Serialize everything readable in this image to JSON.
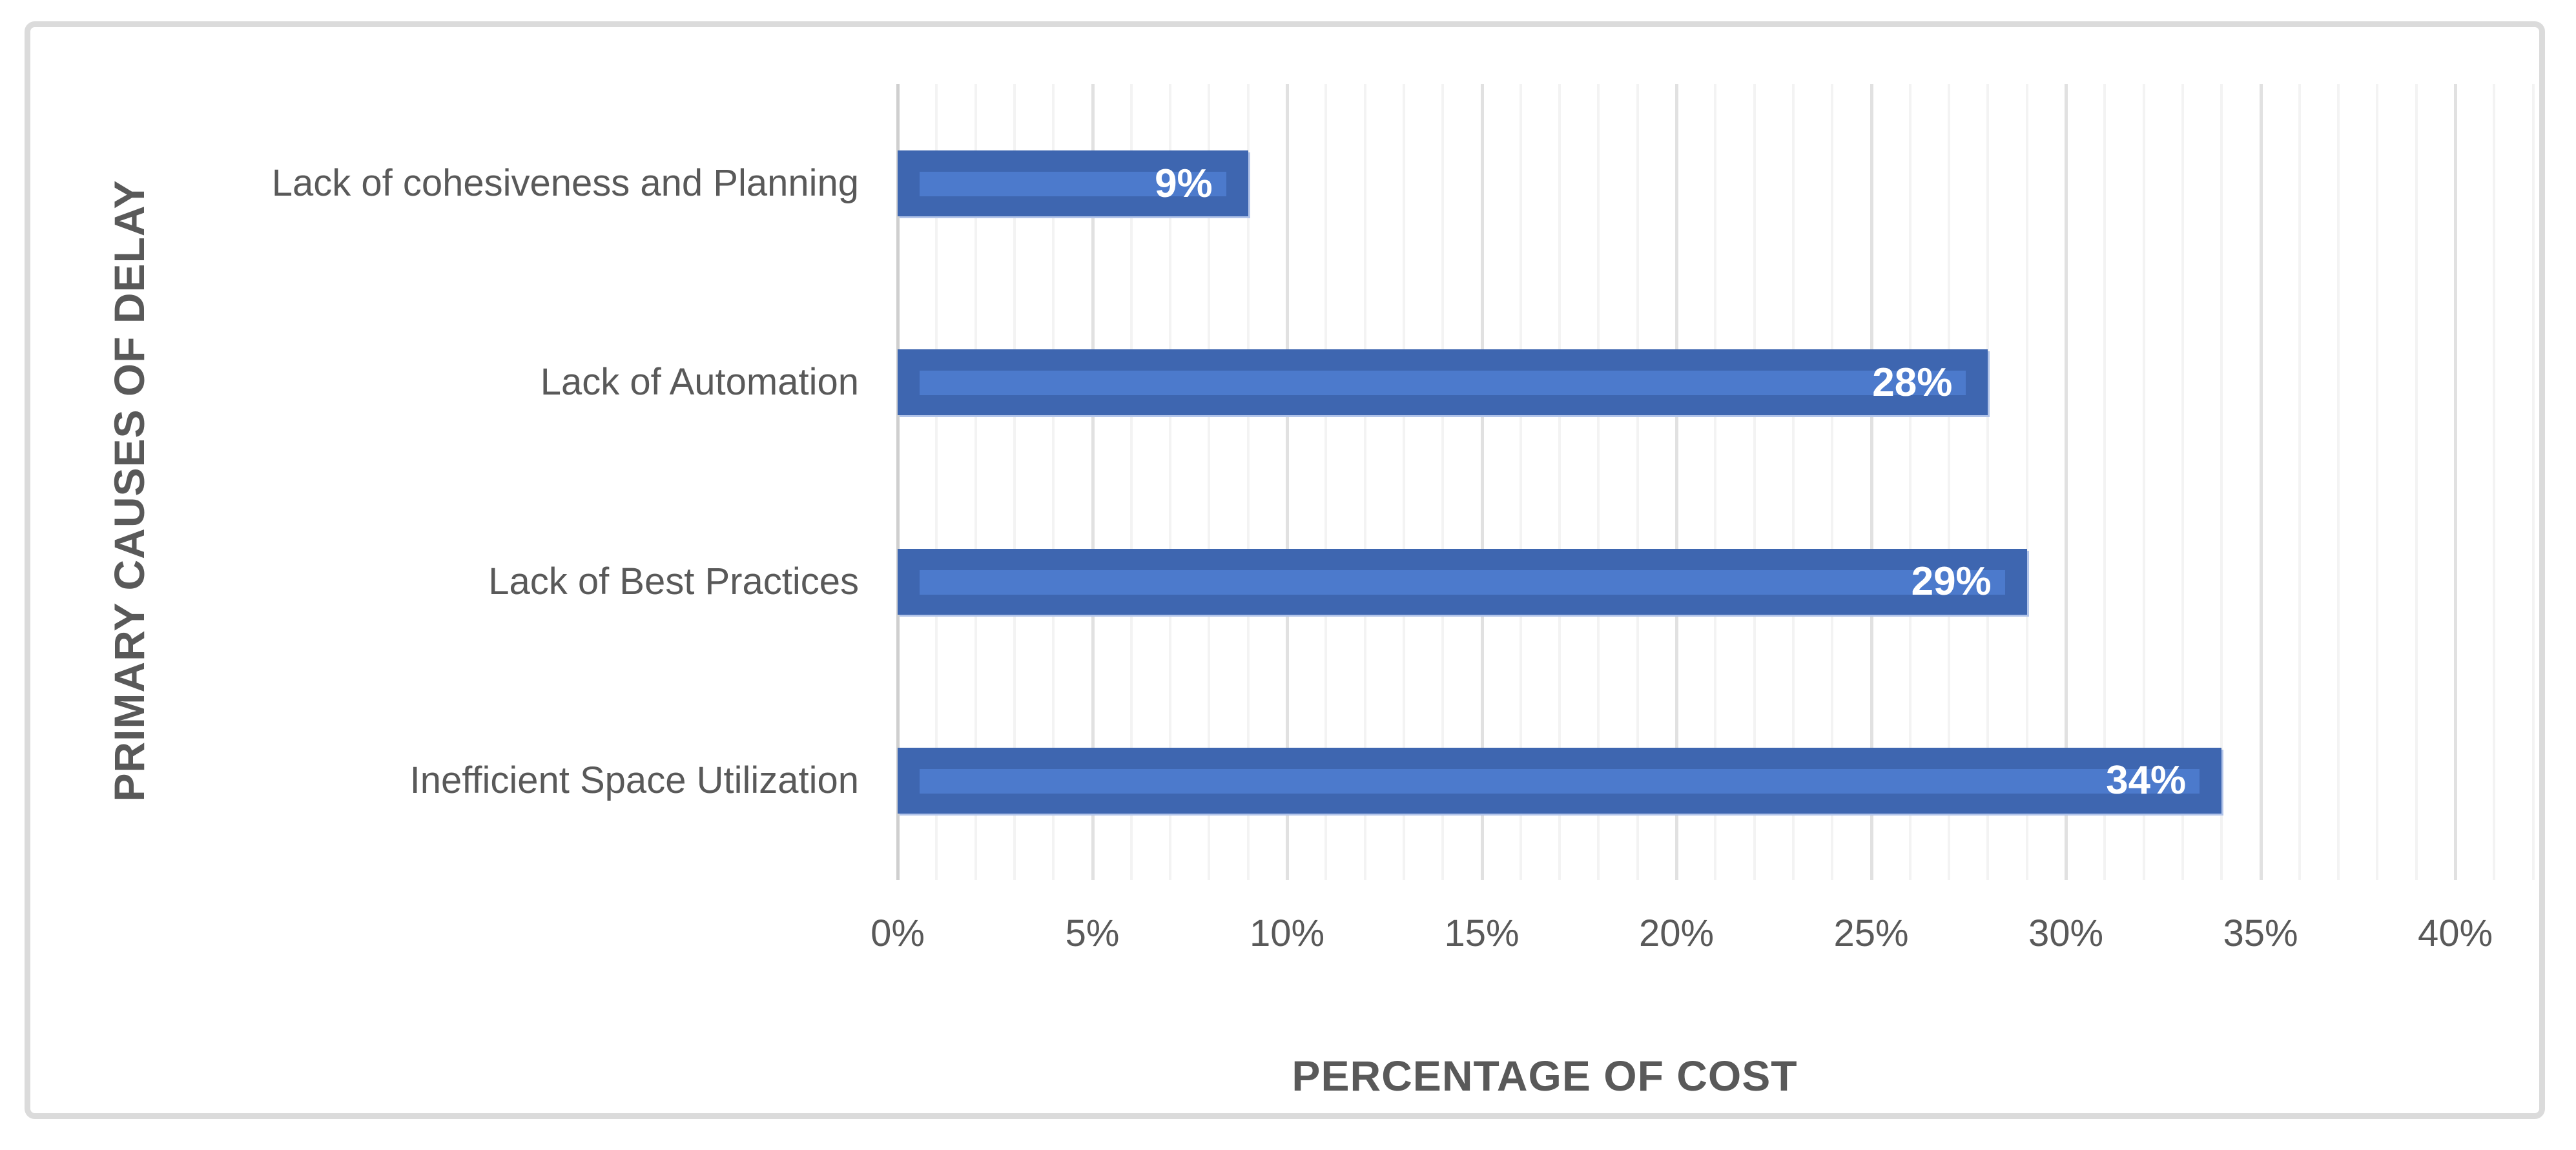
{
  "chart_data": {
    "type": "bar",
    "orientation": "horizontal",
    "title": "",
    "xlabel": "PERCENTAGE OF COST",
    "ylabel": "PRIMARY CAUSES OF DELAY",
    "categories": [
      "Lack of cohesiveness and Planning",
      "Lack of Automation",
      "Lack of Best Practices",
      "Inefficient Space Utilization"
    ],
    "values": [
      9,
      28,
      29,
      34
    ],
    "data_labels": [
      "9%",
      "28%",
      "29%",
      "34%"
    ],
    "xlim": [
      0,
      40
    ],
    "x_major_tick_step": 5,
    "x_minor_grid_step": 1,
    "x_tick_labels": [
      "0%",
      "5%",
      "10%",
      "15%",
      "20%",
      "25%",
      "30%",
      "35%",
      "40%"
    ],
    "grid": "vertical minor and major gridlines on",
    "legend_position": "none",
    "colors": {
      "bar_fill": "#3E66B0",
      "bar_highlight_stripe": "#4C7ACC",
      "bar_soft_edge": "#B2C4E9",
      "data_label_text": "#FFFFFF",
      "axis_text": "#595959",
      "gridline_minor": "#F3F3F3",
      "gridline_major": "#E1E1E1",
      "gridline_zero": "#CFCFCF",
      "chart_frame_border": "#DBDBDB",
      "background": "#FFFFFF"
    }
  }
}
